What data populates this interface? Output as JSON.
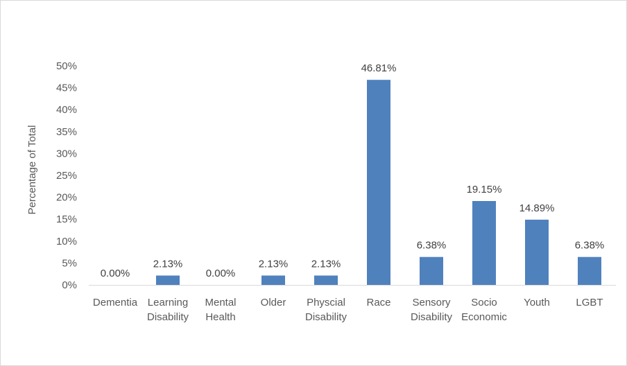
{
  "chart_data": {
    "type": "bar",
    "title": "",
    "xlabel": "",
    "ylabel": "Percentage of Total",
    "ylim": [
      0,
      50
    ],
    "yticks": [
      "0%",
      "5%",
      "10%",
      "15%",
      "20%",
      "25%",
      "30%",
      "35%",
      "40%",
      "45%",
      "50%"
    ],
    "grid": false,
    "legend": "none",
    "bar_color": "#4f81bd",
    "categories": [
      [
        "Dementia"
      ],
      [
        "Learning",
        "Disability"
      ],
      [
        "Mental",
        "Health"
      ],
      [
        "Older"
      ],
      [
        "Physcial",
        "Disability"
      ],
      [
        "Race"
      ],
      [
        "Sensory",
        "Disability"
      ],
      [
        "Socio",
        "Economic"
      ],
      [
        "Youth"
      ],
      [
        "LGBT"
      ]
    ],
    "values": [
      0.0,
      2.13,
      0.0,
      2.13,
      2.13,
      46.81,
      6.38,
      19.15,
      14.89,
      6.38
    ],
    "data_labels": [
      "0.00%",
      "2.13%",
      "0.00%",
      "2.13%",
      "2.13%",
      "46.81%",
      "6.38%",
      "19.15%",
      "14.89%",
      "6.38%"
    ]
  }
}
